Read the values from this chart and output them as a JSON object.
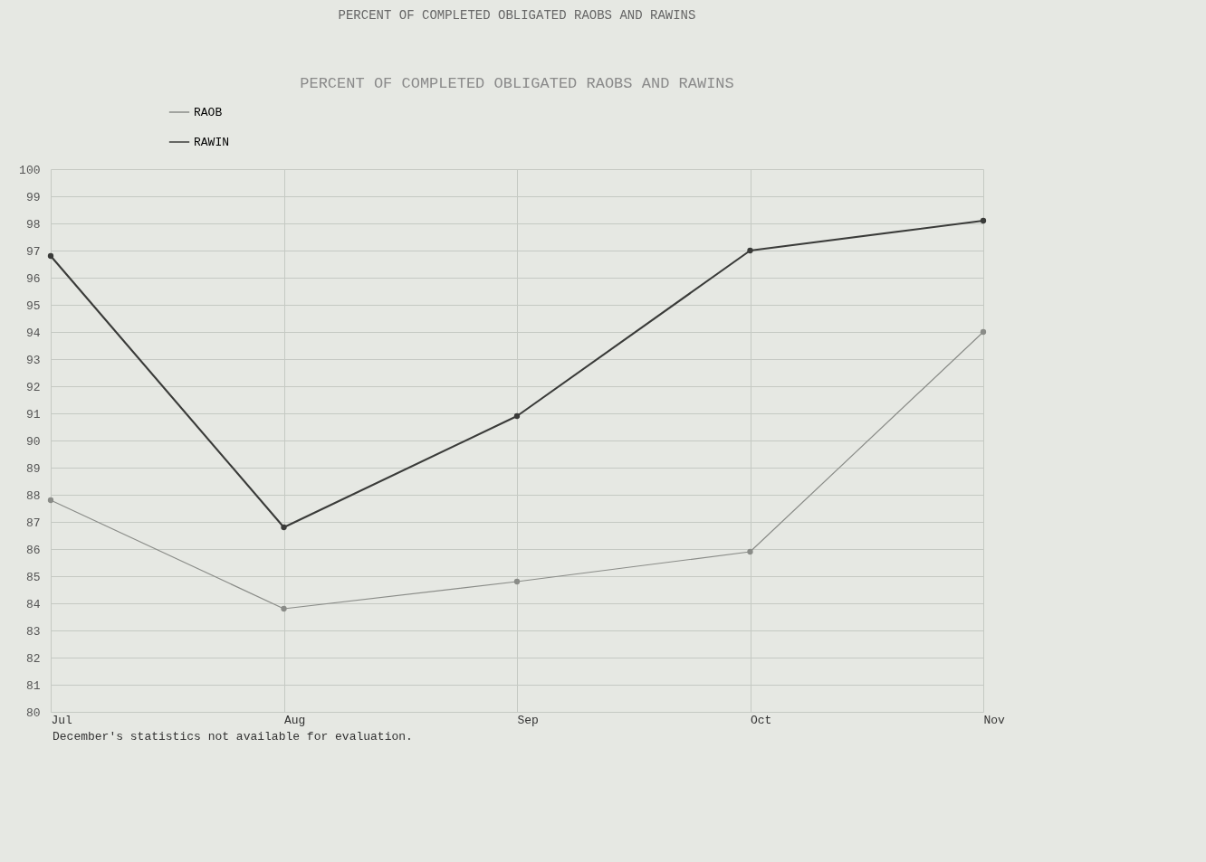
{
  "chart_data": {
    "type": "line",
    "title": "PERCENT OF COMPLETED OBLIGATED RAOBS AND RAWINS",
    "subtitle": "PERCENT OF COMPLETED OBLIGATED RAOBS AND RAWINS",
    "categories": [
      "Jul",
      "Aug",
      "Sep",
      "Oct",
      "Nov"
    ],
    "series": [
      {
        "name": "RAOB",
        "color": "#8a8c88",
        "values": [
          87.8,
          83.8,
          84.8,
          85.9,
          94.0
        ]
      },
      {
        "name": "RAWIN",
        "color": "#3a3b39",
        "values": [
          96.8,
          86.8,
          90.9,
          97.0,
          98.1
        ]
      }
    ],
    "ylim": [
      80,
      100
    ],
    "yticks": [
      80,
      81,
      82,
      83,
      84,
      85,
      86,
      87,
      88,
      89,
      90,
      91,
      92,
      93,
      94,
      95,
      96,
      97,
      98,
      99,
      100
    ],
    "grid": true,
    "legend": "top left",
    "marker": "circle",
    "line_style": "solid",
    "annotations": [
      "December's statistics not available for evaluation."
    ]
  }
}
